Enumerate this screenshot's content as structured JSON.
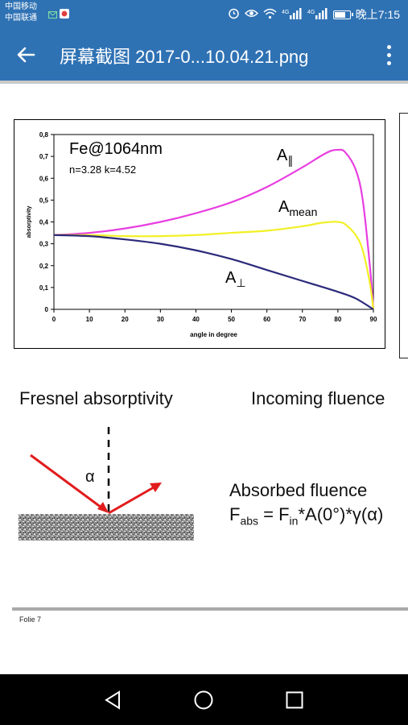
{
  "status_bar": {
    "carrier_1": "中国移动",
    "carrier_2": "中国联通",
    "network_1": "4G",
    "network_2": "4G",
    "time": "晚上7:15",
    "battery_level": 0.8,
    "icons": [
      "alarm-icon",
      "eye-icon",
      "wifi-icon",
      "signal-icon",
      "signal-icon",
      "battery-icon"
    ]
  },
  "app_bar": {
    "title": "屏幕截图 2017-0...10.04.21.png",
    "back_icon": "arrow-back-icon",
    "more_icon": "more-vert-icon",
    "color": "#2f72b4"
  },
  "slide": {
    "chart_data": {
      "type": "line",
      "title": "Fe@1064nm",
      "subtitle": "n=3.28 k=4.52",
      "xlabel": "angle in degree",
      "ylabel": "absorptivity",
      "xlim": [
        0,
        90
      ],
      "ylim": [
        0,
        0.8
      ],
      "x_ticks": [
        0,
        10,
        20,
        30,
        40,
        50,
        60,
        70,
        80,
        90
      ],
      "y_ticks": [
        0,
        0.1,
        0.2,
        0.3,
        0.4,
        0.5,
        0.6,
        0.7,
        0.8
      ],
      "y_tick_labels": [
        "0",
        "0,1",
        "0,2",
        "0,3",
        "0,4",
        "0,5",
        "0,6",
        "0,7",
        "0,8"
      ],
      "grid": false,
      "series": [
        {
          "name": "A∥",
          "label_main": "A",
          "label_sub": "∥",
          "color": "#e83ee0",
          "x": [
            0,
            10,
            20,
            30,
            40,
            50,
            60,
            70,
            75,
            78,
            80,
            82,
            85,
            87,
            89,
            90
          ],
          "y": [
            0.34,
            0.35,
            0.37,
            0.4,
            0.44,
            0.49,
            0.56,
            0.65,
            0.7,
            0.725,
            0.73,
            0.72,
            0.64,
            0.5,
            0.2,
            0.0
          ]
        },
        {
          "name": "Amean",
          "label_main": "A",
          "label_sub": "mean",
          "color": "#f2f025",
          "x": [
            0,
            10,
            20,
            30,
            40,
            50,
            60,
            70,
            75,
            78,
            80,
            82,
            85,
            87,
            89,
            90
          ],
          "y": [
            0.34,
            0.34,
            0.335,
            0.335,
            0.34,
            0.35,
            0.36,
            0.38,
            0.395,
            0.4,
            0.4,
            0.39,
            0.34,
            0.27,
            0.12,
            0.0
          ]
        },
        {
          "name": "A⊥",
          "label_main": "A",
          "label_sub": "⊥",
          "color": "#2b2a7a",
          "x": [
            0,
            10,
            20,
            30,
            40,
            50,
            60,
            70,
            80,
            85,
            90
          ],
          "y": [
            0.34,
            0.335,
            0.32,
            0.3,
            0.27,
            0.23,
            0.18,
            0.13,
            0.08,
            0.05,
            0.0
          ]
        }
      ]
    },
    "fresnel_label": "Fresnel absorptivity",
    "incoming_label": "Incoming fluence",
    "alpha_label": "α",
    "absorbed_label": "Absorbed fluence",
    "formula": {
      "f": "F",
      "abs": "abs",
      "eq": " = F",
      "in": "in",
      "rest": "*A(0°)*γ(α)"
    },
    "footer": "Folie 7"
  },
  "nav_bar": {
    "back": "nav-back-icon",
    "home": "nav-home-icon",
    "recents": "nav-recents-icon"
  }
}
